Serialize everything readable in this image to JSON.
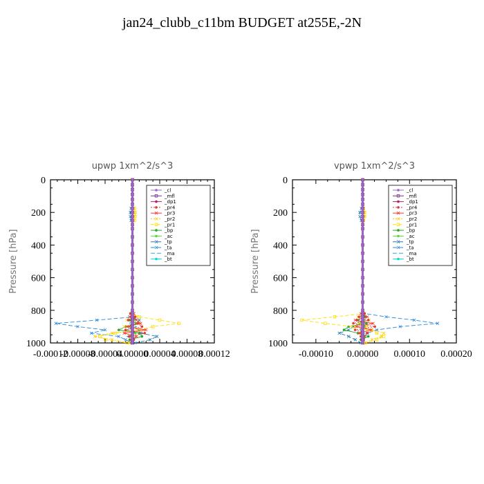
{
  "figure": {
    "title": "jan24_clubb_c11bm  BUDGET at255E,-2N"
  },
  "chart_data": [
    {
      "type": "line",
      "title": "upwp   1xm^2/s^3",
      "ylabel": "Pressure [hPa]",
      "xlabel": "",
      "xlim": [
        -0.00012,
        0.00012
      ],
      "ylim": [
        1000,
        0
      ],
      "yticks": [
        0,
        200,
        400,
        600,
        800,
        1000
      ],
      "xticks": [
        -0.00012,
        -8e-05,
        -4e-05,
        0,
        4e-05,
        8e-05,
        0.00012
      ],
      "xtick_labels": [
        "-0.00012",
        "-0.00008",
        "-0.00004",
        "0.00000",
        "0.00004",
        "0.00008",
        "0.00012"
      ],
      "legend_position": "top-right",
      "levels": [
        0,
        30,
        60,
        90,
        120,
        150,
        175,
        200,
        225,
        250,
        275,
        300,
        350,
        400,
        450,
        500,
        550,
        600,
        650,
        700,
        750,
        800,
        820,
        840,
        860,
        880,
        900,
        920,
        940,
        960,
        980,
        1000
      ],
      "series": [
        {
          "name": "_cl",
          "color": "#9966cc",
          "marker": "circle",
          "dash": "",
          "values": [
            0,
            0,
            0,
            0,
            0,
            0,
            0,
            0,
            0,
            0,
            0,
            0,
            0,
            0,
            0,
            0,
            0,
            0,
            0,
            0,
            0,
            0,
            0,
            0,
            0,
            0,
            0,
            0,
            0,
            0,
            0,
            0
          ]
        },
        {
          "name": "_mfl",
          "color": "#7b2d8e",
          "marker": "square",
          "dash": "",
          "values": [
            0,
            0,
            0,
            0,
            0,
            0,
            0,
            0,
            0,
            0,
            0,
            0,
            0,
            0,
            0,
            0,
            0,
            0,
            0,
            0,
            0,
            0,
            0,
            0,
            0,
            0,
            0,
            0,
            0,
            0,
            0,
            0
          ]
        },
        {
          "name": "_dp1",
          "color": "#b22266",
          "marker": "circle",
          "dash": "",
          "values": [
            0,
            0,
            0,
            0,
            0,
            0,
            0,
            0,
            0,
            0,
            0,
            0,
            0,
            0,
            0,
            0,
            0,
            0,
            0,
            0,
            0,
            0,
            0,
            0,
            0,
            0,
            0,
            0,
            0,
            0,
            0,
            0
          ]
        },
        {
          "name": "_pr4",
          "color": "#e03a3a",
          "marker": "circle",
          "dash": "2,2",
          "values": [
            0,
            0,
            0,
            0,
            0,
            0,
            0,
            0,
            0,
            0,
            0,
            0,
            0,
            0,
            0,
            0,
            0,
            0,
            0,
            0,
            0,
            0,
            -3e-06,
            4e-06,
            -6e-06,
            8e-06,
            1.4e-05,
            -1e-05,
            1.8e-05,
            -5e-06,
            2e-06,
            0
          ]
        },
        {
          "name": "_pr3",
          "color": "#ff3333",
          "marker": "x",
          "dash": "",
          "values": [
            0,
            0,
            0,
            0,
            0,
            0,
            0,
            0,
            0,
            0,
            0,
            0,
            0,
            0,
            0,
            0,
            0,
            0,
            0,
            0,
            0,
            0,
            2e-06,
            -4e-06,
            6e-06,
            1.2e-05,
            -8e-06,
            2e-05,
            -1.2e-05,
            6e-06,
            -2e-06,
            0
          ]
        },
        {
          "name": "_pr2",
          "color": "#ffcc00",
          "marker": "x",
          "dash": "2,2",
          "values": [
            0,
            0,
            0,
            0,
            0,
            0,
            2e-06,
            3e-06,
            3e-06,
            2e-06,
            0,
            0,
            0,
            0,
            0,
            0,
            0,
            0,
            0,
            0,
            0,
            0,
            2e-06,
            6e-06,
            -8e-06,
            1e-05,
            -1.2e-05,
            1.6e-05,
            -3e-05,
            -5.5e-05,
            -3e-05,
            -4e-06
          ]
        },
        {
          "name": "_pr1",
          "color": "#ffdd00",
          "marker": "square",
          "dash": "5,3",
          "values": [
            0,
            0,
            0,
            0,
            0,
            0,
            3e-06,
            4e-06,
            4e-06,
            3e-06,
            0,
            0,
            0,
            0,
            0,
            0,
            0,
            0,
            0,
            0,
            0,
            0,
            -2e-06,
            1e-05,
            4e-05,
            6.8e-05,
            3e-05,
            1e-05,
            -2.5e-05,
            -4.8e-05,
            -4e-05,
            -8e-06
          ]
        },
        {
          "name": "_bp",
          "color": "#22aa22",
          "marker": "circle",
          "dash": "",
          "values": [
            0,
            0,
            0,
            0,
            0,
            0,
            0,
            0,
            0,
            0,
            0,
            0,
            0,
            0,
            0,
            0,
            0,
            0,
            0,
            0,
            0,
            0,
            0,
            2e-06,
            -4e-06,
            6e-06,
            -1e-05,
            -2e-05,
            1e-05,
            1.4e-05,
            -4e-06,
            0
          ]
        },
        {
          "name": "_ac",
          "color": "#55dd33",
          "marker": "circle",
          "dash": "",
          "values": [
            0,
            0,
            0,
            0,
            0,
            0,
            0,
            0,
            0,
            0,
            0,
            0,
            0,
            0,
            0,
            0,
            0,
            0,
            0,
            0,
            0,
            0,
            0,
            0,
            2e-06,
            0,
            -2e-06,
            0,
            4e-06,
            -4e-06,
            2e-06,
            0
          ]
        },
        {
          "name": "_tp",
          "color": "#1f77b4",
          "marker": "x",
          "dash": "6,3",
          "values": [
            0,
            0,
            0,
            0,
            0,
            0,
            -2e-06,
            -3e-06,
            -3e-06,
            -2e-06,
            0,
            0,
            0,
            0,
            0,
            0,
            0,
            0,
            0,
            0,
            0,
            0,
            2e-06,
            -4e-06,
            1e-05,
            6e-06,
            -4e-06,
            1e-05,
            1.2e-05,
            3.6e-05,
            2.6e-05,
            4e-06
          ]
        },
        {
          "name": "_ta",
          "color": "#2288dd",
          "marker": "x",
          "dash": "6,3",
          "values": [
            0,
            0,
            0,
            0,
            0,
            0,
            0,
            0,
            0,
            0,
            0,
            0,
            0,
            0,
            0,
            0,
            0,
            0,
            0,
            0,
            0,
            0,
            -2e-06,
            3e-06,
            -5.2e-05,
            -0.000112,
            -8e-05,
            -4e-05,
            -6e-05,
            -2e-05,
            -1e-05,
            0
          ]
        },
        {
          "name": "_ma",
          "color": "#33aacc",
          "marker": "none",
          "dash": "6,3",
          "values": [
            0,
            0,
            0,
            0,
            0,
            0,
            0,
            0,
            0,
            0,
            0,
            0,
            0,
            0,
            0,
            0,
            0,
            0,
            0,
            0,
            0,
            0,
            0,
            2e-06,
            4e-06,
            -6e-06,
            6e-06,
            -1e-05,
            4e-06,
            -8e-06,
            2e-06,
            0
          ]
        },
        {
          "name": "_bt",
          "color": "#00dddd",
          "marker": "circle",
          "dash": "",
          "values": [
            0,
            0,
            0,
            0,
            0,
            0,
            0,
            0,
            0,
            0,
            0,
            0,
            0,
            0,
            0,
            0,
            0,
            0,
            0,
            0,
            0,
            0,
            0,
            0,
            0,
            0,
            0,
            0,
            0,
            0,
            0,
            0
          ]
        }
      ]
    },
    {
      "type": "line",
      "title": "vpwp   1xm^2/s^3",
      "ylabel": "Pressure [hPa]",
      "xlabel": "",
      "xlim": [
        -0.00015,
        0.0002
      ],
      "ylim": [
        1000,
        0
      ],
      "yticks": [
        0,
        200,
        400,
        600,
        800,
        1000
      ],
      "xticks": [
        -0.0001,
        0,
        0.0001,
        0.0002
      ],
      "xtick_labels": [
        "-0.00010",
        "0.00000",
        "0.00010",
        "0.00020"
      ],
      "legend_position": "top-right",
      "levels": [
        0,
        30,
        60,
        90,
        120,
        150,
        175,
        200,
        225,
        250,
        275,
        300,
        350,
        400,
        450,
        500,
        550,
        600,
        650,
        700,
        750,
        800,
        820,
        840,
        860,
        880,
        900,
        920,
        940,
        960,
        980,
        1000
      ],
      "series": [
        {
          "name": "_cl",
          "color": "#9966cc",
          "marker": "circle",
          "dash": "",
          "values": [
            0,
            0,
            0,
            0,
            0,
            0,
            0,
            0,
            0,
            0,
            0,
            0,
            0,
            0,
            0,
            0,
            0,
            0,
            0,
            0,
            0,
            0,
            0,
            0,
            0,
            0,
            0,
            0,
            0,
            0,
            0,
            0
          ]
        },
        {
          "name": "_mfl",
          "color": "#7b2d8e",
          "marker": "square",
          "dash": "",
          "values": [
            0,
            0,
            0,
            0,
            0,
            0,
            0,
            0,
            0,
            0,
            0,
            0,
            0,
            0,
            0,
            0,
            0,
            0,
            0,
            0,
            0,
            0,
            0,
            0,
            0,
            0,
            0,
            0,
            0,
            0,
            0,
            0
          ]
        },
        {
          "name": "_dp1",
          "color": "#b22266",
          "marker": "circle",
          "dash": "",
          "values": [
            0,
            0,
            0,
            0,
            0,
            0,
            0,
            0,
            0,
            0,
            0,
            0,
            0,
            0,
            0,
            0,
            0,
            0,
            0,
            0,
            0,
            0,
            0,
            0,
            0,
            0,
            0,
            0,
            0,
            0,
            0,
            0
          ]
        },
        {
          "name": "_pr4",
          "color": "#e03a3a",
          "marker": "circle",
          "dash": "2,2",
          "values": [
            0,
            0,
            0,
            0,
            0,
            0,
            0,
            0,
            0,
            0,
            0,
            0,
            0,
            0,
            0,
            0,
            0,
            0,
            0,
            0,
            0,
            0,
            4e-06,
            -8e-06,
            1.2e-05,
            -2e-05,
            2.6e-05,
            -1.6e-05,
            1e-05,
            -4e-06,
            2e-06,
            0
          ]
        },
        {
          "name": "_pr3",
          "color": "#ff3333",
          "marker": "x",
          "dash": "",
          "values": [
            0,
            0,
            0,
            0,
            0,
            0,
            0,
            0,
            0,
            0,
            0,
            0,
            0,
            0,
            0,
            0,
            0,
            0,
            0,
            0,
            0,
            0,
            -4e-06,
            1e-05,
            -1.6e-05,
            2.2e-05,
            -1.4e-05,
            1.8e-05,
            -8e-06,
            4e-06,
            -2e-06,
            0
          ]
        },
        {
          "name": "_pr2",
          "color": "#ffcc00",
          "marker": "x",
          "dash": "2,2",
          "values": [
            0,
            0,
            0,
            0,
            0,
            0,
            2e-06,
            4e-06,
            4e-06,
            2e-06,
            0,
            0,
            0,
            0,
            0,
            0,
            0,
            0,
            0,
            0,
            0,
            0,
            4e-06,
            -1e-05,
            1.4e-05,
            -8e-06,
            1e-05,
            2e-05,
            4.5e-05,
            4e-05,
            2e-05,
            4e-06
          ]
        },
        {
          "name": "_pr1",
          "color": "#ffdd00",
          "marker": "square",
          "dash": "5,3",
          "values": [
            0,
            0,
            0,
            0,
            0,
            0,
            2e-06,
            4e-06,
            4e-06,
            2e-06,
            0,
            0,
            0,
            0,
            0,
            0,
            0,
            0,
            0,
            0,
            0,
            0,
            2e-06,
            -6e-05,
            -0.00013,
            -8e-05,
            -2e-05,
            1e-05,
            3e-05,
            4.5e-05,
            3e-05,
            6e-06
          ]
        },
        {
          "name": "_bp",
          "color": "#22aa22",
          "marker": "circle",
          "dash": "",
          "values": [
            0,
            0,
            0,
            0,
            0,
            0,
            0,
            0,
            0,
            0,
            0,
            0,
            0,
            0,
            0,
            0,
            0,
            0,
            0,
            0,
            0,
            0,
            -2e-06,
            6e-06,
            -1.2e-05,
            8e-06,
            -3e-05,
            -4e-05,
            -1e-05,
            1.2e-05,
            -4e-06,
            0
          ]
        },
        {
          "name": "_ac",
          "color": "#55dd33",
          "marker": "circle",
          "dash": "",
          "values": [
            0,
            0,
            0,
            0,
            0,
            0,
            0,
            0,
            0,
            0,
            0,
            0,
            0,
            0,
            0,
            0,
            0,
            0,
            0,
            0,
            0,
            0,
            0,
            0,
            2e-06,
            -4e-06,
            4e-06,
            0,
            -4e-06,
            4e-06,
            0,
            0
          ]
        },
        {
          "name": "_tp",
          "color": "#1f77b4",
          "marker": "x",
          "dash": "6,3",
          "values": [
            0,
            0,
            0,
            0,
            0,
            0,
            -3e-06,
            -6e-06,
            -6e-06,
            -3e-06,
            0,
            0,
            0,
            0,
            0,
            0,
            0,
            0,
            0,
            0,
            0,
            0,
            2e-06,
            4e-06,
            -1e-05,
            -6e-06,
            -2e-05,
            -3e-05,
            -5e-05,
            -3e-05,
            -1.6e-05,
            -4e-06
          ]
        },
        {
          "name": "_ta",
          "color": "#2288dd",
          "marker": "x",
          "dash": "6,3",
          "values": [
            0,
            0,
            0,
            0,
            0,
            0,
            0,
            0,
            0,
            0,
            0,
            0,
            0,
            0,
            0,
            0,
            0,
            0,
            0,
            0,
            0,
            0,
            4e-06,
            5e-05,
            0.00011,
            0.00016,
            8e-05,
            3e-05,
            1e-05,
            4e-06,
            2e-06,
            0
          ]
        },
        {
          "name": "_ma",
          "color": "#33aacc",
          "marker": "none",
          "dash": "6,3",
          "values": [
            0,
            0,
            0,
            0,
            0,
            0,
            0,
            0,
            0,
            0,
            0,
            0,
            0,
            0,
            0,
            0,
            0,
            0,
            0,
            0,
            0,
            0,
            0,
            -4e-06,
            6e-06,
            -8e-06,
            4e-06,
            -6e-06,
            4e-06,
            -2e-06,
            0,
            0
          ]
        },
        {
          "name": "_bt",
          "color": "#00dddd",
          "marker": "circle",
          "dash": "",
          "values": [
            0,
            0,
            0,
            0,
            0,
            0,
            0,
            0,
            0,
            0,
            0,
            0,
            0,
            0,
            0,
            0,
            0,
            0,
            0,
            0,
            0,
            0,
            0,
            0,
            0,
            0,
            0,
            0,
            0,
            0,
            0,
            0
          ]
        }
      ]
    }
  ]
}
